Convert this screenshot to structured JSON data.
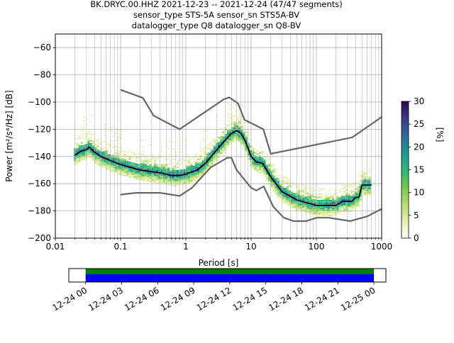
{
  "chart_data": {
    "type": "heatmap",
    "title_lines": [
      "BK.DRYC.00.HHZ   2021-12-23 -- 2021-12-24  (47/47 segments)",
      "sensor_type STS-5A sensor_sn STS5A-BV",
      "datalogger_type Q8 datalogger_sn Q8-BV"
    ],
    "xlabel": "Period [s]",
    "ylabel": "Power [m²/s⁴/Hz] [dB]",
    "xscale": "log",
    "xlim": [
      0.01,
      1000
    ],
    "ylim": [
      -200,
      -50
    ],
    "xticks": [
      {
        "v": 0.01,
        "label": "0.01"
      },
      {
        "v": 0.1,
        "label": "0.1"
      },
      {
        "v": 1,
        "label": "1"
      },
      {
        "v": 10,
        "label": "10"
      },
      {
        "v": 100,
        "label": "100"
      },
      {
        "v": 1000,
        "label": "1000"
      }
    ],
    "yticks": [
      -60,
      -80,
      -100,
      -120,
      -140,
      -160,
      -180,
      -200
    ],
    "grid": true,
    "colorbar": {
      "label": "[%]",
      "range": [
        0,
        30
      ],
      "ticks": [
        0,
        5,
        10,
        15,
        20,
        25,
        30
      ]
    },
    "series": [
      {
        "name": "NHNM",
        "color": "#666666",
        "points": [
          [
            0.1,
            -91
          ],
          [
            0.22,
            -97
          ],
          [
            0.32,
            -110
          ],
          [
            0.8,
            -120
          ],
          [
            3.8,
            -98
          ],
          [
            4.6,
            -96.5
          ],
          [
            6.3,
            -101
          ],
          [
            7.9,
            -113
          ],
          [
            15.4,
            -120
          ],
          [
            20,
            -138
          ],
          [
            354,
            -126
          ],
          [
            1000,
            -111
          ]
        ]
      },
      {
        "name": "NLNM",
        "color": "#666666",
        "points": [
          [
            0.1,
            -168
          ],
          [
            0.17,
            -166.7
          ],
          [
            0.4,
            -166.7
          ],
          [
            0.8,
            -169
          ],
          [
            1.24,
            -163
          ],
          [
            2.4,
            -148
          ],
          [
            4.3,
            -141
          ],
          [
            5,
            -141
          ],
          [
            6,
            -150
          ],
          [
            10,
            -163
          ],
          [
            12,
            -165
          ],
          [
            15.6,
            -162
          ],
          [
            21.9,
            -177
          ],
          [
            31.6,
            -185
          ],
          [
            45,
            -187.5
          ],
          [
            70,
            -187.5
          ],
          [
            101,
            -185
          ],
          [
            154,
            -185
          ],
          [
            328,
            -187.5
          ],
          [
            600,
            -184
          ],
          [
            1000,
            -178.5
          ]
        ]
      },
      {
        "name": "mean",
        "color": "#000000",
        "points": [
          [
            0.02,
            -139
          ],
          [
            0.025,
            -136
          ],
          [
            0.03,
            -135
          ],
          [
            0.033,
            -133
          ],
          [
            0.04,
            -137
          ],
          [
            0.05,
            -140
          ],
          [
            0.07,
            -143
          ],
          [
            0.1,
            -146
          ],
          [
            0.2,
            -150
          ],
          [
            0.4,
            -152
          ],
          [
            0.6,
            -154
          ],
          [
            0.8,
            -154
          ],
          [
            1,
            -153
          ],
          [
            1.5,
            -150
          ],
          [
            2,
            -145
          ],
          [
            3,
            -135
          ],
          [
            4,
            -128
          ],
          [
            5,
            -123
          ],
          [
            6,
            -121
          ],
          [
            7,
            -123
          ],
          [
            8,
            -128
          ],
          [
            9,
            -134
          ],
          [
            10,
            -140
          ],
          [
            12,
            -144
          ],
          [
            15,
            -145
          ],
          [
            20,
            -155
          ],
          [
            30,
            -166
          ],
          [
            50,
            -172
          ],
          [
            100,
            -176
          ],
          [
            200,
            -176
          ],
          [
            250,
            -173
          ],
          [
            350,
            -173
          ],
          [
            400,
            -170
          ],
          [
            450,
            -170
          ],
          [
            500,
            -161
          ],
          [
            700,
            -161
          ]
        ]
      }
    ],
    "timeline": {
      "ticks": [
        "12-24 00",
        "12-24 03",
        "12-24 06",
        "12-24 09",
        "12-24 12",
        "12-24 15",
        "12-24 18",
        "12-24 21",
        "12-25 00"
      ],
      "coverage_start_hours": 0,
      "coverage_end_hours": 24,
      "axis_hours": [
        -1.4,
        25.0
      ],
      "colors": {
        "top": "#008000",
        "bottom": "#0000ff"
      }
    }
  }
}
